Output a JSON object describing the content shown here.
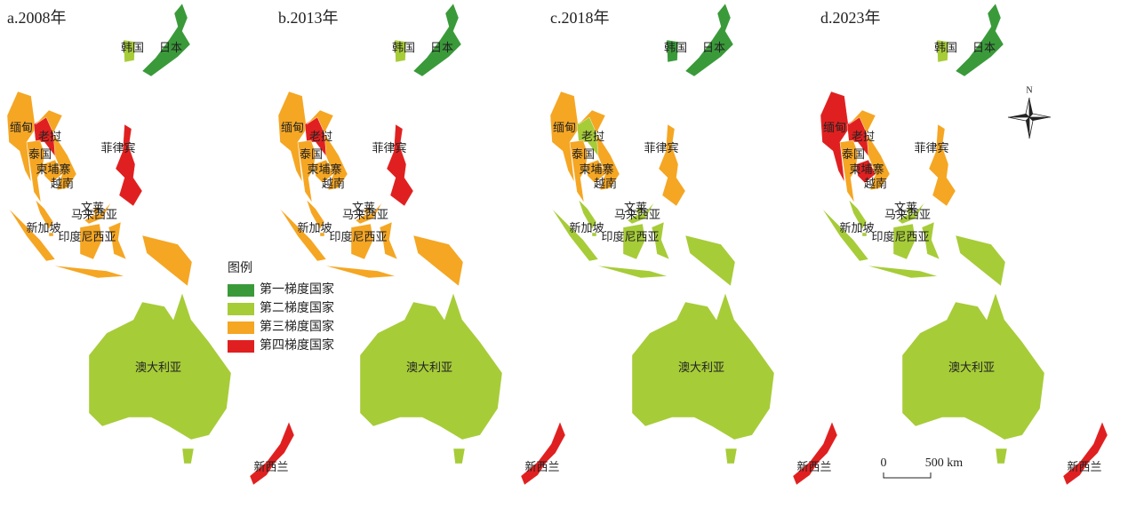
{
  "panels": [
    {
      "title": "a.2008年",
      "countries": [
        {
          "label": "韩国",
          "color": "#a6cc38"
        },
        {
          "label": "日本",
          "color": "#3a9a3a"
        },
        {
          "label": "缅甸",
          "color": "#f5a623"
        },
        {
          "label": "老挝",
          "color": "#e02020"
        },
        {
          "label": "泰国",
          "color": "#f5a623"
        },
        {
          "label": "柬埔寨",
          "color": "#f5a623"
        },
        {
          "label": "越南",
          "color": "#f5a623"
        },
        {
          "label": "菲律宾",
          "color": "#e02020"
        },
        {
          "label": "文莱",
          "color": "#f5a623"
        },
        {
          "label": "马来西亚",
          "color": "#f5a623"
        },
        {
          "label": "新加坡",
          "color": "#f5a623"
        },
        {
          "label": "印度尼西亚",
          "color": "#f5a623"
        },
        {
          "label": "澳大利亚",
          "color": "#a6cc38"
        },
        {
          "label": "新西兰",
          "color": "#e02020"
        }
      ]
    },
    {
      "title": "b.2013年",
      "countries": [
        {
          "label": "韩国",
          "color": "#a6cc38"
        },
        {
          "label": "日本",
          "color": "#3a9a3a"
        },
        {
          "label": "缅甸",
          "color": "#f5a623"
        },
        {
          "label": "老挝",
          "color": "#e02020"
        },
        {
          "label": "泰国",
          "color": "#f5a623"
        },
        {
          "label": "柬埔寨",
          "color": "#f5a623"
        },
        {
          "label": "越南",
          "color": "#f5a623"
        },
        {
          "label": "菲律宾",
          "color": "#e02020"
        },
        {
          "label": "文莱",
          "color": "#f5a623"
        },
        {
          "label": "马来西亚",
          "color": "#f5a623"
        },
        {
          "label": "新加坡",
          "color": "#f5a623"
        },
        {
          "label": "印度尼西亚",
          "color": "#f5a623"
        },
        {
          "label": "澳大利亚",
          "color": "#a6cc38"
        },
        {
          "label": "新西兰",
          "color": "#e02020"
        }
      ]
    },
    {
      "title": "c.2018年",
      "countries": [
        {
          "label": "韩国",
          "color": "#3a9a3a"
        },
        {
          "label": "日本",
          "color": "#3a9a3a"
        },
        {
          "label": "缅甸",
          "color": "#f5a623"
        },
        {
          "label": "老挝",
          "color": "#a6cc38"
        },
        {
          "label": "泰国",
          "color": "#f5a623"
        },
        {
          "label": "柬埔寨",
          "color": "#f5a623"
        },
        {
          "label": "越南",
          "color": "#f5a623"
        },
        {
          "label": "菲律宾",
          "color": "#f5a623"
        },
        {
          "label": "文莱",
          "color": "#a6cc38"
        },
        {
          "label": "马来西亚",
          "color": "#a6cc38"
        },
        {
          "label": "新加坡",
          "color": "#a6cc38"
        },
        {
          "label": "印度尼西亚",
          "color": "#a6cc38"
        },
        {
          "label": "澳大利亚",
          "color": "#a6cc38"
        },
        {
          "label": "新西兰",
          "color": "#e02020"
        }
      ]
    },
    {
      "title": "d.2023年",
      "countries": [
        {
          "label": "韩国",
          "color": "#a6cc38"
        },
        {
          "label": "日本",
          "color": "#3a9a3a"
        },
        {
          "label": "缅甸",
          "color": "#e02020"
        },
        {
          "label": "老挝",
          "color": "#e02020"
        },
        {
          "label": "泰国",
          "color": "#f5a623"
        },
        {
          "label": "柬埔寨",
          "color": "#e02020"
        },
        {
          "label": "越南",
          "color": "#f5a623"
        },
        {
          "label": "菲律宾",
          "color": "#f5a623"
        },
        {
          "label": "文莱",
          "color": "#a6cc38"
        },
        {
          "label": "马来西亚",
          "color": "#a6cc38"
        },
        {
          "label": "新加坡",
          "color": "#a6cc38"
        },
        {
          "label": "印度尼西亚",
          "color": "#a6cc38"
        },
        {
          "label": "澳大利亚",
          "color": "#a6cc38"
        },
        {
          "label": "新西兰",
          "color": "#e02020"
        }
      ]
    }
  ],
  "legend": {
    "title": "图例",
    "items": [
      {
        "label": "第一梯度国家",
        "color": "#3a9a3a"
      },
      {
        "label": "第二梯度国家",
        "color": "#a6cc38"
      },
      {
        "label": "第三梯度国家",
        "color": "#f5a623"
      },
      {
        "label": "第四梯度国家",
        "color": "#e02020"
      }
    ]
  },
  "north": "N",
  "scale": {
    "start": "0",
    "end": "500 km"
  }
}
